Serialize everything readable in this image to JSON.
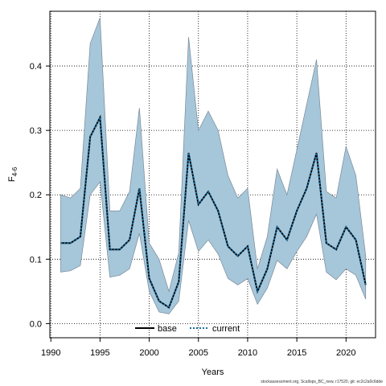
{
  "chart_data": {
    "type": "area",
    "xlabel": "Years",
    "ylabel": "F",
    "ylabel_subscript": "4-6",
    "xlim": [
      1989.9,
      2023.0
    ],
    "ylim": [
      -0.022,
      0.485
    ],
    "xticks": [
      1990,
      1995,
      2000,
      2005,
      2010,
      2015,
      2020
    ],
    "yticks": [
      0.0,
      0.1,
      0.2,
      0.3,
      0.4
    ],
    "ytick_labels": [
      "0.0",
      "0.1",
      "0.2",
      "0.3",
      "0.4"
    ],
    "grid": "dotted",
    "legend_position": "bottom-center",
    "x": [
      1991,
      1992,
      1993,
      1994,
      1995,
      1996,
      1997,
      1998,
      1999,
      2000,
      2001,
      2002,
      2003,
      2004,
      2005,
      2006,
      2007,
      2008,
      2009,
      2010,
      2011,
      2012,
      2013,
      2014,
      2015,
      2016,
      2017,
      2018,
      2019,
      2020,
      2021,
      2022
    ],
    "series": [
      {
        "name": "base",
        "color": "#000000",
        "style": "solid",
        "values": [
          0.125,
          0.125,
          0.135,
          0.29,
          0.32,
          0.115,
          0.115,
          0.13,
          0.21,
          0.07,
          0.035,
          0.025,
          0.065,
          0.265,
          0.185,
          0.205,
          0.175,
          0.12,
          0.105,
          0.12,
          0.05,
          0.085,
          0.15,
          0.13,
          0.175,
          0.21,
          0.265,
          0.125,
          0.115,
          0.15,
          0.13,
          0.06
        ]
      },
      {
        "name": "current",
        "color": "#1a6fa0",
        "style": "dotted",
        "values": [
          0.125,
          0.125,
          0.135,
          0.29,
          0.32,
          0.115,
          0.115,
          0.13,
          0.21,
          0.07,
          0.035,
          0.025,
          0.065,
          0.265,
          0.185,
          0.205,
          0.175,
          0.12,
          0.105,
          0.12,
          0.05,
          0.085,
          0.15,
          0.13,
          0.175,
          0.21,
          0.265,
          0.125,
          0.115,
          0.15,
          0.13,
          0.06
        ]
      }
    ],
    "band": {
      "color": "#a6c6d9",
      "edge_color": "#7a8a99",
      "upper": [
        0.2,
        0.195,
        0.21,
        0.435,
        0.475,
        0.175,
        0.175,
        0.205,
        0.335,
        0.125,
        0.1,
        0.05,
        0.11,
        0.445,
        0.3,
        0.33,
        0.3,
        0.23,
        0.195,
        0.21,
        0.085,
        0.135,
        0.24,
        0.2,
        0.27,
        0.34,
        0.41,
        0.205,
        0.195,
        0.275,
        0.23,
        0.105
      ],
      "lower": [
        0.08,
        0.082,
        0.09,
        0.2,
        0.22,
        0.072,
        0.075,
        0.085,
        0.14,
        0.05,
        0.018,
        0.015,
        0.035,
        0.16,
        0.112,
        0.13,
        0.108,
        0.07,
        0.06,
        0.07,
        0.03,
        0.055,
        0.098,
        0.085,
        0.112,
        0.135,
        0.17,
        0.08,
        0.068,
        0.085,
        0.075,
        0.038
      ]
    }
  },
  "footnote": "stockassessment.org, Scallops_BC_new, r17520, git: ec2c2a0c6dde"
}
